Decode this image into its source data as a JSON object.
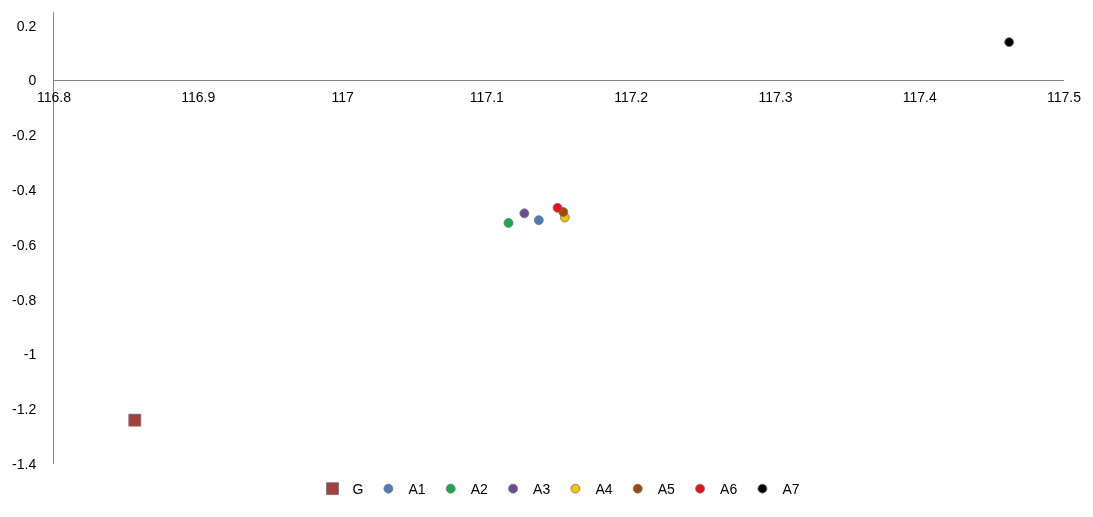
{
  "chart_data": {
    "type": "scatter",
    "series": [
      {
        "name": "G",
        "color": "#a5403c",
        "marker": "square",
        "x": [
          116.856
        ],
        "values": [
          -1.24
        ]
      },
      {
        "name": "A1",
        "color": "#4a7ebb",
        "marker": "circle",
        "x": [
          117.136
        ],
        "values": [
          -0.51
        ]
      },
      {
        "name": "A2",
        "color": "#1ea84a",
        "marker": "circle",
        "x": [
          117.115
        ],
        "values": [
          -0.52
        ]
      },
      {
        "name": "A3",
        "color": "#6a4c93",
        "marker": "circle",
        "x": [
          117.126
        ],
        "values": [
          -0.485
        ]
      },
      {
        "name": "A4",
        "color": "#f2c200",
        "marker": "circle",
        "x": [
          117.154
        ],
        "values": [
          -0.5
        ]
      },
      {
        "name": "A5",
        "color": "#9c4a06",
        "marker": "circle",
        "x": [
          117.153
        ],
        "values": [
          -0.48
        ]
      },
      {
        "name": "A6",
        "color": "#e8101a",
        "marker": "circle",
        "x": [
          117.149
        ],
        "values": [
          -0.465
        ]
      },
      {
        "name": "A7",
        "color": "#000000",
        "marker": "circle",
        "x": [
          117.462
        ],
        "values": [
          0.14
        ]
      }
    ],
    "xlim": [
      116.8,
      117.5
    ],
    "xticks": [
      116.8,
      116.9,
      117,
      117.1,
      117.2,
      117.3,
      117.4,
      117.5
    ],
    "ylim": [
      -1.4,
      0.25
    ],
    "yticks": [
      0.2,
      0,
      -0.2,
      -0.4,
      -0.6,
      -0.8,
      -1,
      -1.2,
      -1.4
    ],
    "legend": "bottom"
  }
}
